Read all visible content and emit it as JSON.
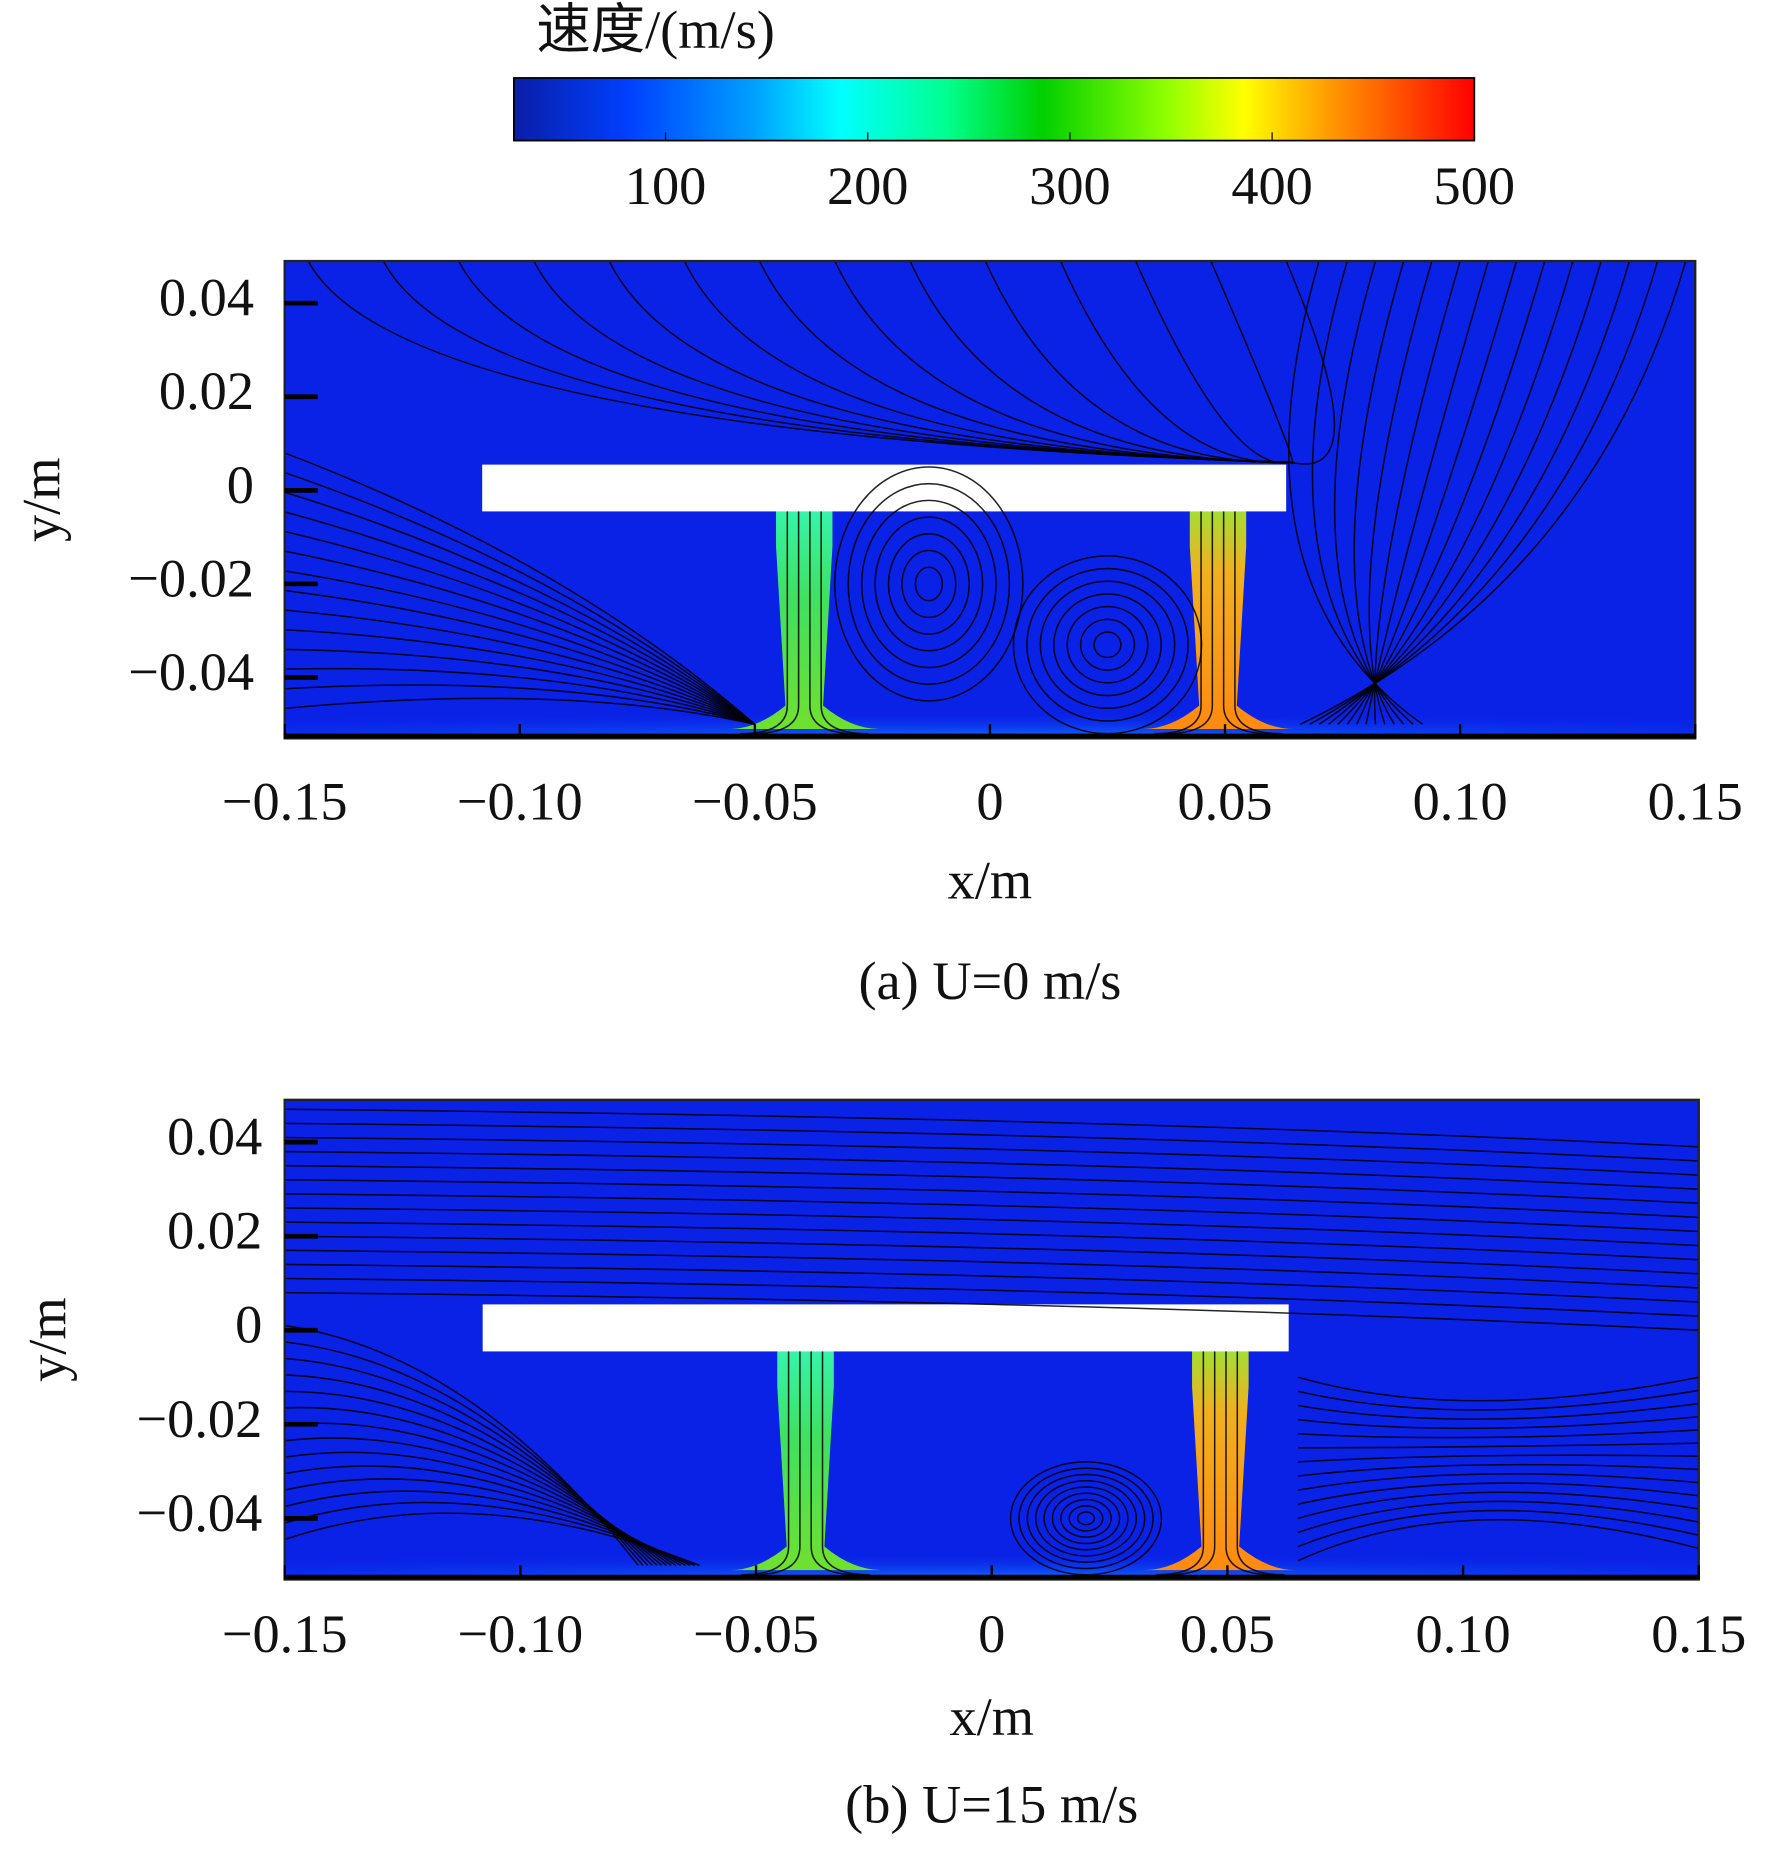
{
  "colorbar": {
    "title": "速度/(m/s)",
    "lim": [
      25,
      500
    ],
    "ticks": [
      100,
      200,
      300,
      400,
      500
    ]
  },
  "chart_data": [
    {
      "type": "contour",
      "caption": "(a) U=0 m/s",
      "xlabel": "x/m",
      "ylabel": "y/m",
      "xlim": [
        -0.15,
        0.15
      ],
      "ylim": [
        -0.053,
        0.049
      ],
      "xticks": [
        {
          "value": -0.15,
          "label": "−0.15"
        },
        {
          "value": -0.1,
          "label": "−0.10"
        },
        {
          "value": -0.05,
          "label": "−0.05"
        },
        0,
        0.05,
        {
          "value": 0.1,
          "label": "0.10"
        },
        0.15
      ],
      "yticks": [
        {
          "value": -0.04,
          "label": "−0.04"
        },
        {
          "value": -0.02,
          "label": "−0.02"
        },
        0,
        0.02,
        0.04
      ]
    },
    {
      "type": "contour",
      "caption": "(b) U=15 m/s",
      "xlabel": "x/m",
      "ylabel": "y/m",
      "xlim": [
        -0.15,
        0.15
      ],
      "ylim": [
        -0.053,
        0.049
      ],
      "xticks": [
        {
          "value": -0.15,
          "label": "−0.15"
        },
        {
          "value": -0.1,
          "label": "−0.10"
        },
        {
          "value": -0.05,
          "label": "−0.05"
        },
        0,
        0.05,
        {
          "value": 0.1,
          "label": "0.10"
        },
        0.15
      ],
      "yticks": [
        {
          "value": -0.04,
          "label": "−0.04"
        },
        {
          "value": -0.02,
          "label": "−0.02"
        },
        0,
        0.02,
        0.04
      ]
    }
  ]
}
